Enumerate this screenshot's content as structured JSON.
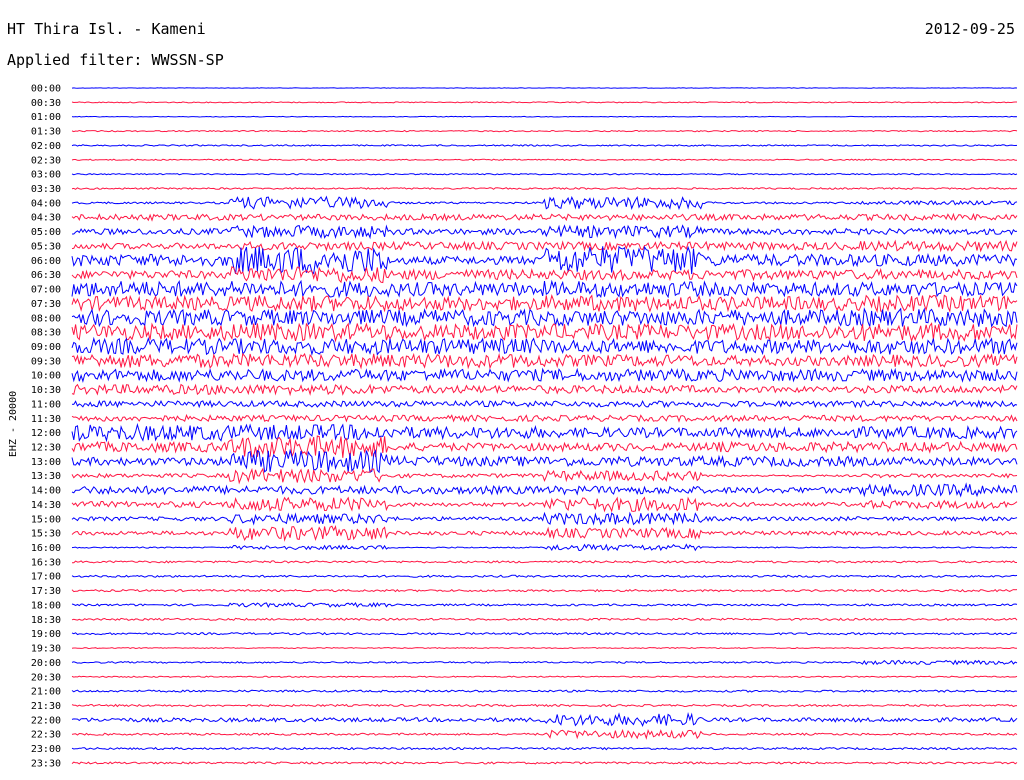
{
  "header": {
    "station": "HT Thira Isl. - Kameni",
    "date": "2012-09-25",
    "filter_label": "Applied filter: WWSSN-SP"
  },
  "chart_data": {
    "type": "line",
    "title": "HT Thira Isl. - Kameni",
    "date": "2012-09-25",
    "filter": "WWSSN-SP",
    "ylabel": "EHZ - 20000",
    "colors": {
      "even_trace": "#0000ff",
      "odd_trace": "#ff1744"
    },
    "rows": [
      "00:00",
      "00:30",
      "01:00",
      "01:30",
      "02:00",
      "02:30",
      "03:00",
      "03:30",
      "04:00",
      "04:30",
      "05:00",
      "05:30",
      "06:00",
      "06:30",
      "07:00",
      "07:30",
      "08:00",
      "08:30",
      "09:00",
      "09:30",
      "10:00",
      "10:30",
      "11:00",
      "11:30",
      "12:00",
      "12:30",
      "13:00",
      "13:30",
      "14:00",
      "14:30",
      "15:00",
      "15:30",
      "16:00",
      "16:30",
      "17:00",
      "17:30",
      "18:00",
      "18:30",
      "19:00",
      "19:30",
      "20:00",
      "20:30",
      "21:00",
      "21:30",
      "22:00",
      "22:30",
      "23:00",
      "23:30"
    ],
    "x_unit": "minutes within each 30-minute row",
    "xlim": [
      0,
      30
    ],
    "activity": [
      [
        0.2,
        0.2,
        0.2,
        0.2,
        0.2,
        0.2
      ],
      [
        0.5,
        0.5,
        0.5,
        0.5,
        0.5,
        0.5
      ],
      [
        0.3,
        0.3,
        0.3,
        0.3,
        0.3,
        0.3
      ],
      [
        0.6,
        0.6,
        0.6,
        0.6,
        0.6,
        0.6
      ],
      [
        0.7,
        0.7,
        0.7,
        0.7,
        0.7,
        0.7
      ],
      [
        0.6,
        0.6,
        0.6,
        0.6,
        0.6,
        0.6
      ],
      [
        0.6,
        0.6,
        0.6,
        0.6,
        0.6,
        0.6
      ],
      [
        0.8,
        0.8,
        0.8,
        0.8,
        0.8,
        0.8
      ],
      [
        1,
        6,
        1,
        6,
        1,
        2
      ],
      [
        3,
        3,
        3,
        3,
        3,
        3
      ],
      [
        3,
        6,
        3,
        6,
        3,
        3
      ],
      [
        3,
        4,
        4,
        4,
        4,
        5
      ],
      [
        6,
        14,
        4,
        14,
        6,
        6
      ],
      [
        4,
        8,
        5,
        5,
        5,
        5
      ],
      [
        8,
        8,
        7,
        8,
        7,
        7
      ],
      [
        7,
        8,
        7,
        8,
        7,
        8
      ],
      [
        8,
        8,
        8,
        8,
        8,
        9
      ],
      [
        8,
        9,
        8,
        8,
        8,
        9
      ],
      [
        8,
        8,
        8,
        7,
        7,
        8
      ],
      [
        7,
        7,
        7,
        6,
        5,
        6
      ],
      [
        6,
        6,
        6,
        6,
        6,
        6
      ],
      [
        5,
        5,
        4,
        4,
        3,
        4
      ],
      [
        3,
        3,
        3,
        3,
        3,
        3
      ],
      [
        3,
        3,
        3,
        3,
        3,
        3
      ],
      [
        8,
        8,
        6,
        5,
        5,
        6
      ],
      [
        5,
        11,
        4,
        4,
        5,
        5
      ],
      [
        4,
        11,
        5,
        5,
        5,
        4
      ],
      [
        2,
        7,
        2,
        5,
        1,
        2
      ],
      [
        4,
        4,
        4,
        4,
        3,
        6
      ],
      [
        3,
        7,
        2,
        7,
        2,
        4
      ],
      [
        2,
        5,
        2,
        6,
        2,
        2
      ],
      [
        2,
        7,
        2,
        5,
        2,
        2
      ],
      [
        0.6,
        2,
        0.6,
        3,
        0.6,
        0.6
      ],
      [
        1,
        1,
        1,
        1,
        1,
        1
      ],
      [
        1,
        1,
        1,
        1,
        1,
        1
      ],
      [
        1,
        1,
        1,
        1,
        1,
        1
      ],
      [
        1,
        2,
        1,
        1,
        1,
        1
      ],
      [
        1,
        1,
        1,
        1,
        1,
        1
      ],
      [
        1,
        1,
        1,
        1,
        1,
        1
      ],
      [
        0.5,
        0.5,
        0.5,
        0.5,
        0.5,
        0.5
      ],
      [
        0.8,
        0.8,
        0.8,
        0.8,
        0.8,
        2
      ],
      [
        0.6,
        0.6,
        0.6,
        0.6,
        0.6,
        0.6
      ],
      [
        1,
        1,
        1,
        1,
        1,
        1
      ],
      [
        1,
        1,
        1,
        1,
        1,
        1
      ],
      [
        2,
        2,
        2,
        6,
        2,
        2
      ],
      [
        1,
        1,
        1,
        4,
        1,
        1
      ],
      [
        1,
        1,
        1,
        1,
        1,
        1
      ],
      [
        1,
        1,
        1,
        1,
        1,
        1
      ]
    ]
  }
}
